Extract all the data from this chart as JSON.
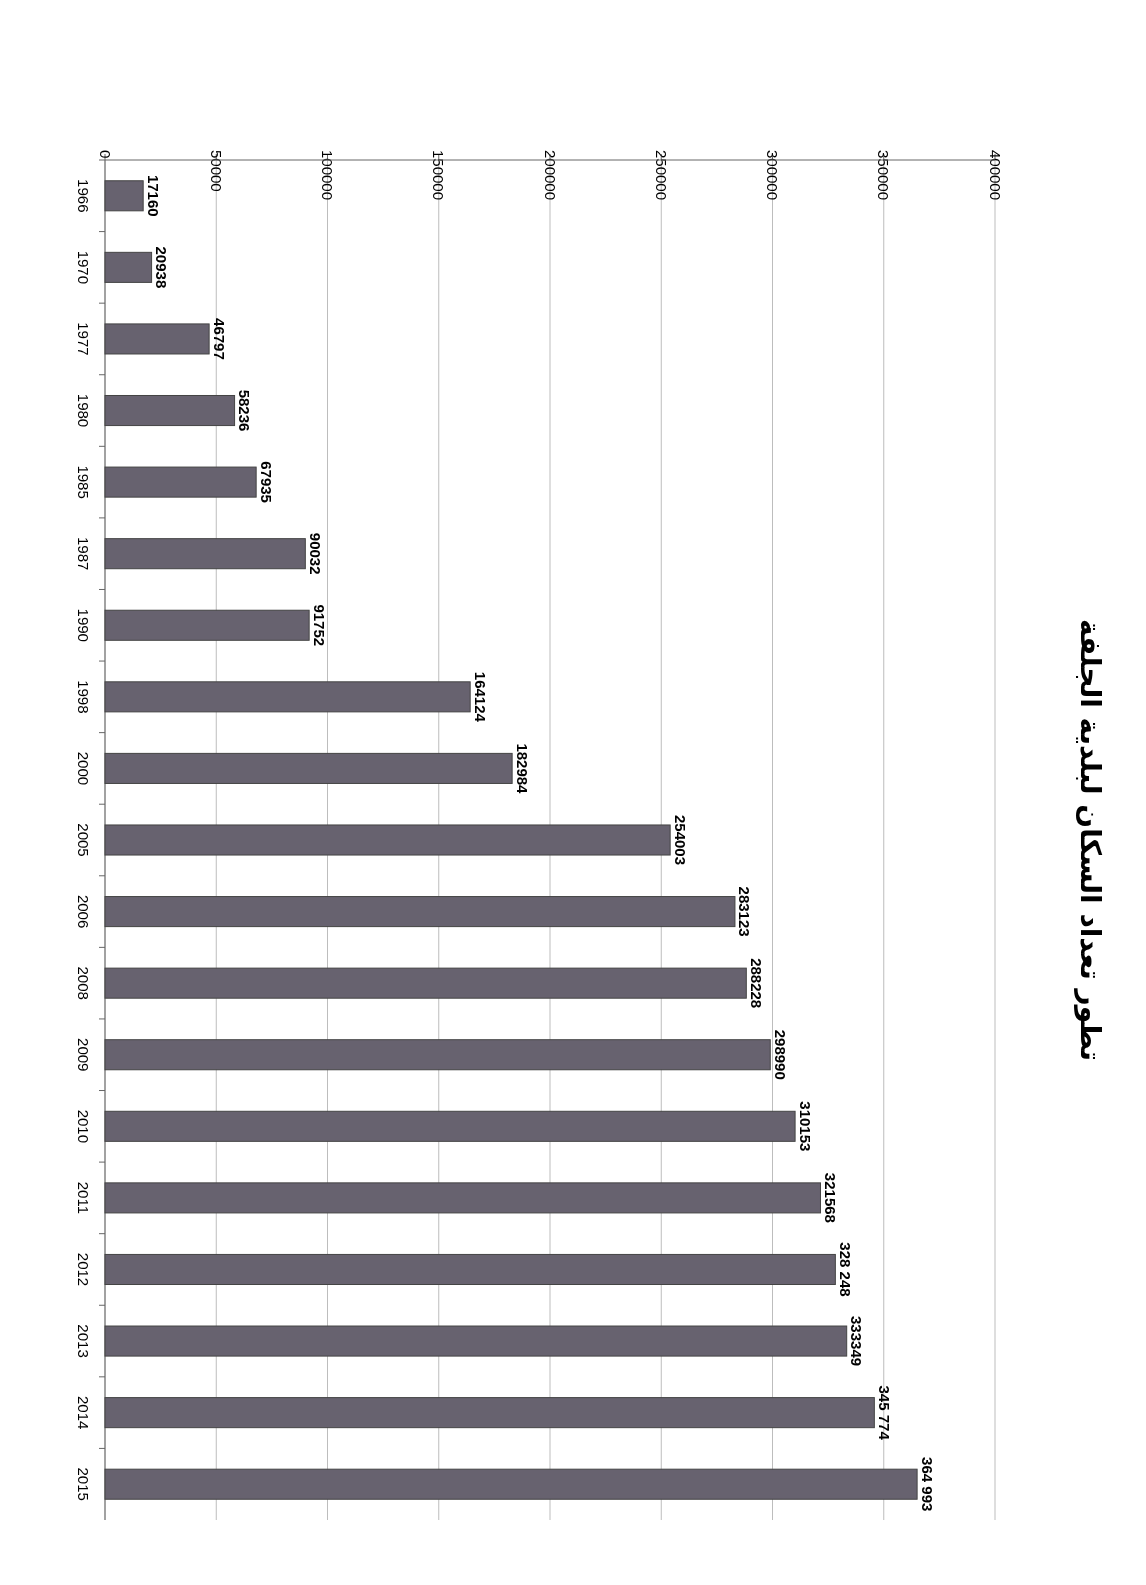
{
  "chart_data": {
    "type": "bar",
    "orientation": "horizontal",
    "title": "تطور تعداد السكان لبلدية الجلفة",
    "categories": [
      "1966",
      "1970",
      "1977",
      "1980",
      "1985",
      "1987",
      "1990",
      "1998",
      "2000",
      "2005",
      "2006",
      "2008",
      "2009",
      "2010",
      "2011",
      "2012",
      "2013",
      "2014",
      "2015"
    ],
    "values": [
      17160,
      20938,
      46797,
      58236,
      67935,
      90032,
      91752,
      164124,
      182984,
      254003,
      283123,
      288228,
      298990,
      310153,
      321568,
      328248,
      333349,
      345774,
      364993
    ],
    "value_labels": [
      "17160",
      "20938",
      "46797",
      "58236",
      "67935",
      "90032",
      "91752",
      "164124",
      "182984",
      "254003",
      "283123",
      "288228",
      "298990",
      "310153",
      "321568",
      "328 248",
      "333349",
      "345 774",
      "364 993"
    ],
    "color": "#67626f",
    "xlim": [
      0,
      400000
    ],
    "xticks": [
      0,
      50000,
      100000,
      150000,
      200000,
      250000,
      300000,
      350000,
      400000
    ],
    "grid": "x"
  }
}
